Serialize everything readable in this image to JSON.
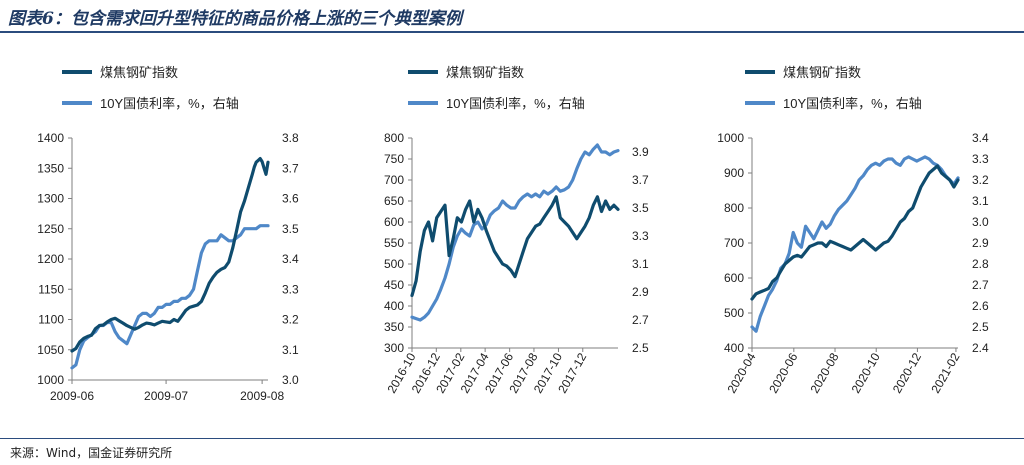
{
  "page": {
    "title": "图表6：包含需求回升型特征的商品价格上涨的三个典型案例",
    "source": "来源：Wind，国金证券研究所"
  },
  "colors": {
    "dark_series": "#0f4c6e",
    "light_series": "#4f88c8",
    "axis": "#7f7f7f",
    "text": "#222222"
  },
  "chart_data": [
    {
      "type": "line",
      "legend": [
        "煤焦钢矿指数",
        "10Y国债利率，%，右轴"
      ],
      "ylim": [
        1000,
        1400
      ],
      "yticks": [
        1000,
        1050,
        1100,
        1150,
        1200,
        1250,
        1300,
        1350,
        1400
      ],
      "y2lim": [
        3.0,
        3.8
      ],
      "y2ticks": [
        "3.0",
        "3.1",
        "3.2",
        "3.3",
        "3.4",
        "3.5",
        "3.6",
        "3.7",
        "3.8"
      ],
      "xticks": [
        {
          "label": "2009-06",
          "pos": 0.0
        },
        {
          "label": "2009-07",
          "pos": 0.48
        },
        {
          "label": "2009-08",
          "pos": 0.97
        }
      ],
      "xrotate": false,
      "series": [
        {
          "name": "煤焦钢矿指数",
          "axis": "left",
          "color": "#0f4c6e",
          "x": [
            0.0,
            0.02,
            0.04,
            0.06,
            0.08,
            0.1,
            0.12,
            0.14,
            0.16,
            0.18,
            0.2,
            0.22,
            0.24,
            0.26,
            0.28,
            0.3,
            0.32,
            0.34,
            0.36,
            0.38,
            0.4,
            0.42,
            0.44,
            0.46,
            0.48,
            0.5,
            0.52,
            0.54,
            0.56,
            0.58,
            0.6,
            0.62,
            0.64,
            0.66,
            0.68,
            0.7,
            0.72,
            0.74,
            0.76,
            0.78,
            0.8,
            0.82,
            0.84,
            0.86,
            0.88,
            0.9,
            0.92,
            0.93,
            0.94,
            0.95,
            0.96,
            0.97,
            0.98,
            0.99,
            1.0
          ],
          "y": [
            1048,
            1052,
            1063,
            1069,
            1072,
            1074,
            1085,
            1090,
            1091,
            1096,
            1100,
            1102,
            1098,
            1094,
            1090,
            1087,
            1084,
            1087,
            1091,
            1094,
            1093,
            1091,
            1094,
            1097,
            1096,
            1095,
            1100,
            1097,
            1106,
            1115,
            1120,
            1122,
            1124,
            1130,
            1144,
            1160,
            1170,
            1178,
            1183,
            1186,
            1195,
            1218,
            1247,
            1278,
            1296,
            1318,
            1340,
            1352,
            1360,
            1363,
            1366,
            1361,
            1350,
            1340,
            1360
          ]
        },
        {
          "name": "10Y国债利率，%，右轴",
          "axis": "right",
          "color": "#4f88c8",
          "x": [
            0.0,
            0.02,
            0.04,
            0.06,
            0.08,
            0.1,
            0.12,
            0.14,
            0.16,
            0.18,
            0.2,
            0.22,
            0.24,
            0.26,
            0.28,
            0.3,
            0.32,
            0.34,
            0.36,
            0.38,
            0.4,
            0.42,
            0.44,
            0.46,
            0.48,
            0.5,
            0.52,
            0.54,
            0.56,
            0.58,
            0.6,
            0.62,
            0.64,
            0.66,
            0.68,
            0.7,
            0.72,
            0.74,
            0.76,
            0.78,
            0.8,
            0.82,
            0.84,
            0.86,
            0.88,
            0.9,
            0.92,
            0.94,
            0.96,
            0.98,
            1.0
          ],
          "y": [
            3.04,
            3.05,
            3.1,
            3.13,
            3.14,
            3.15,
            3.16,
            3.18,
            3.18,
            3.19,
            3.19,
            3.16,
            3.14,
            3.13,
            3.12,
            3.15,
            3.18,
            3.21,
            3.22,
            3.22,
            3.21,
            3.22,
            3.24,
            3.24,
            3.25,
            3.25,
            3.26,
            3.26,
            3.27,
            3.27,
            3.28,
            3.3,
            3.36,
            3.42,
            3.45,
            3.46,
            3.46,
            3.46,
            3.48,
            3.47,
            3.46,
            3.46,
            3.47,
            3.48,
            3.5,
            3.5,
            3.5,
            3.5,
            3.51,
            3.51,
            3.51
          ]
        }
      ]
    },
    {
      "type": "line",
      "legend": [
        "煤焦钢矿指数",
        "10Y国债利率，%，右轴"
      ],
      "ylim": [
        300,
        800
      ],
      "yticks": [
        300,
        350,
        400,
        450,
        500,
        550,
        600,
        650,
        700,
        750,
        800
      ],
      "y2lim": [
        2.5,
        4.0
      ],
      "y2ticks": [
        "2.5",
        "2.7",
        "2.9",
        "3.1",
        "3.3",
        "3.5",
        "3.7",
        "3.9"
      ],
      "xticks": [
        {
          "label": "2016-10",
          "pos": 0.0
        },
        {
          "label": "2016-12",
          "pos": 0.118
        },
        {
          "label": "2017-02",
          "pos": 0.237
        },
        {
          "label": "2017-04",
          "pos": 0.355
        },
        {
          "label": "2017-06",
          "pos": 0.474
        },
        {
          "label": "2017-08",
          "pos": 0.592
        },
        {
          "label": "2017-10",
          "pos": 0.711
        },
        {
          "label": "2017-12",
          "pos": 0.829
        }
      ],
      "xrotate": true,
      "series": [
        {
          "name": "煤焦钢矿指数",
          "axis": "left",
          "color": "#0f4c6e",
          "x": [
            0.0,
            0.02,
            0.04,
            0.06,
            0.08,
            0.1,
            0.12,
            0.14,
            0.16,
            0.18,
            0.2,
            0.22,
            0.24,
            0.26,
            0.28,
            0.3,
            0.32,
            0.34,
            0.36,
            0.38,
            0.4,
            0.42,
            0.44,
            0.46,
            0.48,
            0.5,
            0.52,
            0.54,
            0.56,
            0.58,
            0.6,
            0.62,
            0.64,
            0.66,
            0.68,
            0.7,
            0.72,
            0.74,
            0.76,
            0.78,
            0.8,
            0.82,
            0.84,
            0.86,
            0.88,
            0.9,
            0.92,
            0.94,
            0.96,
            0.98,
            1.0
          ],
          "y": [
            425,
            460,
            530,
            580,
            600,
            555,
            610,
            625,
            640,
            520,
            560,
            610,
            600,
            630,
            650,
            600,
            630,
            610,
            580,
            555,
            530,
            515,
            500,
            495,
            485,
            470,
            500,
            530,
            560,
            575,
            590,
            595,
            610,
            625,
            640,
            660,
            610,
            600,
            590,
            575,
            560,
            575,
            590,
            610,
            640,
            660,
            625,
            650,
            630,
            640,
            630
          ]
        },
        {
          "name": "10Y国债利率，%，右轴",
          "axis": "right",
          "color": "#4f88c8",
          "x": [
            0.0,
            0.02,
            0.04,
            0.06,
            0.08,
            0.1,
            0.12,
            0.14,
            0.16,
            0.18,
            0.2,
            0.22,
            0.24,
            0.26,
            0.28,
            0.3,
            0.32,
            0.34,
            0.36,
            0.38,
            0.4,
            0.42,
            0.44,
            0.46,
            0.48,
            0.5,
            0.52,
            0.54,
            0.56,
            0.58,
            0.6,
            0.62,
            0.64,
            0.66,
            0.68,
            0.7,
            0.72,
            0.74,
            0.76,
            0.78,
            0.8,
            0.82,
            0.84,
            0.86,
            0.88,
            0.9,
            0.92,
            0.94,
            0.96,
            0.98,
            1.0
          ],
          "y": [
            2.72,
            2.71,
            2.7,
            2.72,
            2.75,
            2.8,
            2.85,
            2.92,
            3.0,
            3.1,
            3.22,
            3.3,
            3.35,
            3.32,
            3.3,
            3.38,
            3.4,
            3.35,
            3.38,
            3.45,
            3.48,
            3.5,
            3.55,
            3.52,
            3.5,
            3.5,
            3.55,
            3.58,
            3.6,
            3.58,
            3.6,
            3.58,
            3.62,
            3.6,
            3.62,
            3.65,
            3.62,
            3.63,
            3.65,
            3.7,
            3.78,
            3.85,
            3.9,
            3.88,
            3.92,
            3.95,
            3.9,
            3.9,
            3.88,
            3.9,
            3.91
          ]
        }
      ]
    },
    {
      "type": "line",
      "legend": [
        "煤焦钢矿指数",
        "10Y国债利率，%，右轴"
      ],
      "ylim": [
        400,
        1000
      ],
      "yticks": [
        400,
        500,
        600,
        700,
        800,
        900,
        1000
      ],
      "y2lim": [
        2.4,
        3.4
      ],
      "y2ticks": [
        "2.4",
        "2.5",
        "2.6",
        "2.7",
        "2.8",
        "2.9",
        "3.0",
        "3.1",
        "3.2",
        "3.3",
        "3.4"
      ],
      "xticks": [
        {
          "label": "2020-04",
          "pos": 0.0
        },
        {
          "label": "2020-06",
          "pos": 0.203
        },
        {
          "label": "2020-08",
          "pos": 0.403
        },
        {
          "label": "2020-10",
          "pos": 0.603
        },
        {
          "label": "2020-12",
          "pos": 0.803
        },
        {
          "label": "2021-02",
          "pos": 0.99
        }
      ],
      "xrotate": true,
      "series": [
        {
          "name": "煤焦钢矿指数",
          "axis": "left",
          "color": "#0f4c6e",
          "x": [
            0.0,
            0.02,
            0.04,
            0.06,
            0.08,
            0.1,
            0.12,
            0.14,
            0.16,
            0.18,
            0.2,
            0.22,
            0.24,
            0.26,
            0.28,
            0.3,
            0.32,
            0.34,
            0.36,
            0.38,
            0.4,
            0.42,
            0.44,
            0.46,
            0.48,
            0.5,
            0.52,
            0.54,
            0.56,
            0.58,
            0.6,
            0.62,
            0.64,
            0.66,
            0.68,
            0.7,
            0.72,
            0.74,
            0.76,
            0.78,
            0.8,
            0.82,
            0.84,
            0.86,
            0.88,
            0.9,
            0.92,
            0.94,
            0.96,
            0.98,
            1.0
          ],
          "y": [
            540,
            555,
            560,
            565,
            570,
            590,
            600,
            620,
            640,
            650,
            660,
            665,
            660,
            675,
            690,
            695,
            700,
            700,
            690,
            705,
            700,
            695,
            690,
            685,
            680,
            690,
            700,
            710,
            700,
            690,
            680,
            690,
            700,
            705,
            720,
            740,
            760,
            770,
            790,
            800,
            830,
            860,
            880,
            900,
            910,
            920,
            900,
            890,
            880,
            860,
            880
          ]
        },
        {
          "name": "10Y国债利率，%，右轴",
          "axis": "right",
          "color": "#4f88c8",
          "x": [
            0.0,
            0.02,
            0.04,
            0.06,
            0.08,
            0.1,
            0.12,
            0.14,
            0.16,
            0.18,
            0.2,
            0.22,
            0.24,
            0.26,
            0.28,
            0.3,
            0.32,
            0.34,
            0.36,
            0.38,
            0.4,
            0.42,
            0.44,
            0.46,
            0.48,
            0.5,
            0.52,
            0.54,
            0.56,
            0.58,
            0.6,
            0.62,
            0.64,
            0.66,
            0.68,
            0.7,
            0.72,
            0.74,
            0.76,
            0.78,
            0.8,
            0.82,
            0.84,
            0.86,
            0.88,
            0.9,
            0.92,
            0.94,
            0.96,
            0.98,
            1.0
          ],
          "y": [
            2.5,
            2.48,
            2.55,
            2.6,
            2.65,
            2.68,
            2.72,
            2.78,
            2.8,
            2.85,
            2.95,
            2.9,
            2.88,
            2.98,
            2.95,
            2.92,
            2.96,
            3.0,
            2.97,
            2.99,
            3.03,
            3.06,
            3.08,
            3.1,
            3.13,
            3.16,
            3.2,
            3.22,
            3.25,
            3.27,
            3.28,
            3.27,
            3.29,
            3.3,
            3.3,
            3.28,
            3.27,
            3.3,
            3.31,
            3.3,
            3.29,
            3.3,
            3.31,
            3.3,
            3.28,
            3.27,
            3.25,
            3.22,
            3.2,
            3.18,
            3.21
          ]
        }
      ]
    }
  ]
}
